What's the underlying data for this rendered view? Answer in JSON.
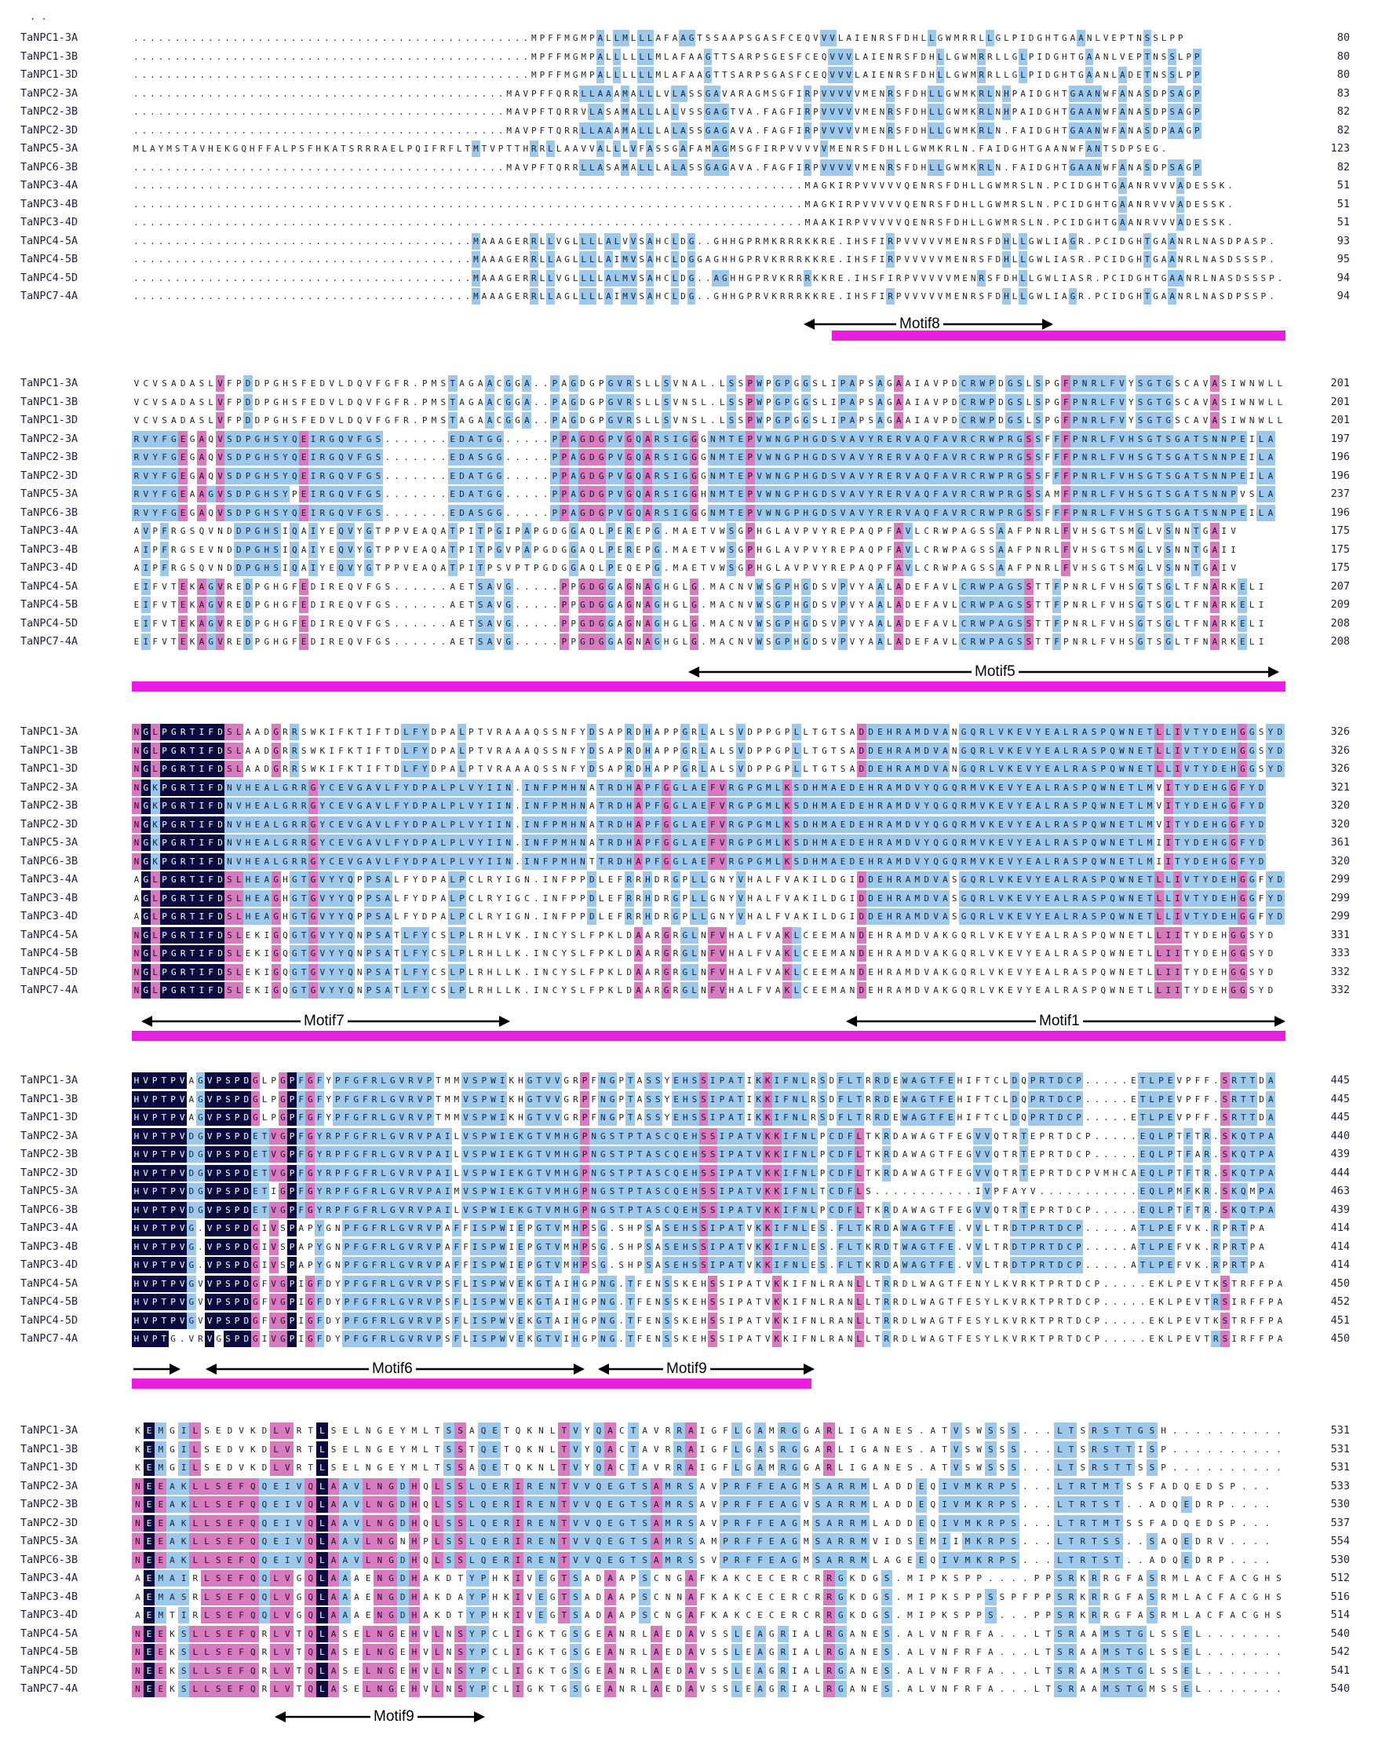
{
  "colors": {
    "identical": "#0b0b3f",
    "similar_pink": "#d77bbf",
    "similar_blue": "#9ec8ea",
    "conserved_bar": "#e81ee0"
  },
  "corner_mark": ". .",
  "sequences": [
    "TaNPC1-3A",
    "TaNPC1-3B",
    "TaNPC1-3D",
    "TaNPC2-3A",
    "TaNPC2-3B",
    "TaNPC2-3D",
    "TaNPC5-3A",
    "TaNPC6-3B",
    "TaNPC3-4A",
    "TaNPC3-4B",
    "TaNPC3-4D",
    "TaNPC4-5A",
    "TaNPC4-5B",
    "TaNPC4-5D",
    "TaNPC7-4A"
  ],
  "blocks": [
    {
      "end_positions": [
        "80",
        "80",
        "80",
        "83",
        "82",
        "82",
        "123",
        "82",
        "51",
        "51",
        "51",
        "93",
        "95",
        "94",
        "94"
      ],
      "rows": [
        "................................................MPFFMGMPALLMLLLAFAAGTSSAAPSGASFCEQVVVLAIENRSFDHLLGWMRRLLGLPIDGHTGAANLVEPTNSSLPP",
        "................................................MPFFMGMPALLLLLLMLAFAAGTTSARPSGESFCEQVVVLAIENRSFDHLLGWMRRLLGLPIDGHTGAANLVEPTNSSLPP",
        "................................................MPFFMGMPALLLLLLMLAFAAGTTSARPSGASFCEQVVVLAIENRSFDHLLGWMRRLLGLPIDGHTGAANLADETNSSLPP",
        ".............................................MAVPFFQRRLLAAAMALLLVLASSGAVARAGMSGFIRPVVVVVMENRSFDHLLGWMKRLNHPAIDGHTGAANWFANASDPSAGP",
        ".............................................MAVPFTQRRVLASAMALLLALVSSGAGTVA.FAGFIRPVVVVVMENRSFDHLLGWMKRLNHPAIDGHTGAANWFANASDPSAGP",
        ".............................................MAVPFTQRRLLAAAMALLLALASSGAGAVA.FAGFIRPVVVVVMENRSFDHLLGWMKRLN.FAIDGHTGAANWFANASDPAAGP",
        "MLAYMSTAVHEKGQHFFALPSFHKATSRRRAELPQIFRFLTMTVPTTHRRLLAAVVALLLVFASSGAFAMAGMSGFIRPVVVVVMENRSFDHLLGWMKRLN.FAIDGHTGAANWFANTSDPSEG.",
        ".............................................MAVPFTQRRLLASAMALLLALASSGAGAVA.FAGFIRPVVVVVMENRSFDHLLGWMKRLN.FAIDGHTGAANWFANASDPSAGP",
        ".................................................................................MAGKIRPVVVVVQENRSFDHLLGWMRSLN.PCIDGHTGAANRVVVADESSK.",
        ".................................................................................MAGKIRPVVVVVQENRSFDHLLGWMRSLN.PCIDGHTGAANRVVVADESSK.",
        ".................................................................................MAAKIRPVVVVVQENRSFDHLLGWMRSLN.PCIDGHTGAANRVVVADESSK.",
        ".........................................MAAAGERRLLVGLLLLALVVSAHCLDG..GHHGPRMKRRRKKRE.IHSFIRPVVVVVMENRSFDHLLGWLIAGR.PCIDGHTGAANRLNASDPASP.",
        ".........................................MAAAGERRLLAGLLLLAIMVSAHCLDGGAGHHGPRVKRRRKKRE.IHSFIRPVVVVVMENRSFDHLLGWLIASR.PCIDGHTGAANRLNASDSSSP.",
        ".........................................MAAAGERRLLVGLLLLALMVSAHCLDG..AGHHGPRVKRRRKKRE.IHSFIRPVVVVVMENRSFDHLLGWLIASR.PCIDGHTGAANRLNASDSSSP.",
        ".........................................MAAAGERRLLAGLLLLAIMVSAHCLDG..GHHGPRVKRRRKKRE.IHSFIRPVVVVVMENRSFDHLLGWLIAGR.PCIDGHTGAANRLNASDPSSP."
      ],
      "motifs": [
        "Motif8"
      ]
    },
    {
      "end_positions": [
        "201",
        "201",
        "201",
        "197",
        "196",
        "196",
        "237",
        "196",
        "175",
        "175",
        "175",
        "207",
        "209",
        "208",
        "208"
      ],
      "rows": [
        "VCVSADASLVFPDDPGHSFEDVLDQVFGFR.PMSTAGAACGGA..PAGDGPGVRSLLSVNAL.LSSPWPGPGGSLIPAPSAGAAIAVPDCRWPDGSLSPGFPNRLFVYSGTGSCAVASIWNWLL",
        "VCVSADASLVFPDDPGHSFEDVLDQVFGFR.PMSTAGAACGGA..PAGDGPGVRSLLSVNSL.LSSPWPGPGGSLIPAPSAGAAIAVPDCRWPDGSLSPGFPNRLFVYSGTGSCAVASIWNWLL",
        "VCVSADASLVFPDDPGHSFEDVLDQVFGFR.PMSTAGAACGGA..PAGDGPGVRSLLSVNSL.LSSPWPGPGGSLIPAPSAGAAIAVPDCRWPDGSLSPGFPNRLFVYSGTGSCAVASIWNWLL",
        "RVYFGEGAQVSDPGHSYQEIRGQVFGS.......EDATGG.....PPAGDGPVGQARSIGGGNMTEPVWNGPHGDSVAVYRERVAQFAVRCRWPRGSSFFFPNRLFVHSGTSGATSNNPEILA",
        "RVYFGEGAQVSDPGHSYQEIRGQVFGS.......EDASGG.....PPAGDGPVGQARSIGGGNMTEPVWNGPHGDSVAVYRERVAQFAVRCRWPRGSSFFFPNRLFVHSGTSGATSNNPEILA",
        "RVYFGEGAQVSDPGHSYQEIRGQVFGS.......EDATGG.....PPAGDGPVGQARSIGGGNMTEPVWNGPHGDSVAVYRERVAQFAVRCRWPRGSSFFFPNRLFVHSGTSGATSNNPEILA",
        "RVYFGEAAGVSDPGHSYPEIRGQVFGS.......EDATGG.....PPAGDGPVGQARSIGGHNMTEPVWNGPHGDSVAVYRERVAQFAVRCRWPRGSSAMFPNRLFVHSGTSGATSNNPVSLA",
        "RVYFGEGAQVSDPGHSYQEIRGQVFGS.......EDASGG.....PPAGDGPVGQARSIGGGNMTEPVWNGPHGDSVAVYRERVAQFAVRCRWPRGSSFFFPNRLFVHSGTSGATSNNPEILA",
        "AVPFRGSQVNDDPGHSIQAIYEQVYGTPPVEAQATPITPGIPAPGDGGAQLPEREPG.MAETVWSGPHGLAVPVYREPAQPFAVLCRWPAGSSAAFPNRLFVHSGTSMGLVSNNTGAIV",
        "AIPFRGSEVNDDPGHSIQAIYEQVYGTPPVEAQATPITPGVPAPGDGGAQLPEREPG.MAETVWSGPHGLAVPVYREPAQPFAVLCRWPAGSSAAFPNRLFVHSGTSMGLVSNNTGAII",
        "AIPFRGSQVNDDPGHSIQAIYEQVYGTPPVEAQATPITPSVPTPGDGGAQLPEQEPG.MAETVWSGPHGLAVPVYREPAQPFAVLCRWPAGSSAAFPNRLFVHSGTSMGLVSNNTGAIV",
        "EIFVTEKAGVREDPGHGFEDIREQVFGS......AETSAVG.....PPGDGGAGNAGHGLG.MACNVWSGPHGDSVPVYAALADEFAVLCRWPAGSSTTFPNRLFVHSGTSGLTFNARKELI",
        "EIFVTEKAGVREDPGHGFEDIREQVFGS......AETSAVG.....PPGDGGAGNAGHGLG.MACNVWSGPHGDSVPVYAALADEFAVLCRWPAGSSTTFPNRLFVHSGTSGLTFNARKELI",
        "EIFVTEKAGVREDPGHGFEDIREQVFGS......AETSAVG.....PPGDGGAGNAGHGLG.MACNVWSGPHGDSVPVYAALADEFAVLCRWPAGSSTTFPNRLFVHSGTSGLTFNARKELI",
        "EIFVTEKAGVREDPGHGFEDIREQVFGS......AETSAVG.....PPGDGGAGNAGHGLG.MACNVWSGPHGDSVPVYAALADEFAVLCRWPAGSSTTFPNRLFVHSGTSGLTFNARKELI"
      ],
      "motifs": [
        "Motif5"
      ]
    },
    {
      "end_positions": [
        "326",
        "326",
        "326",
        "321",
        "320",
        "320",
        "361",
        "320",
        "299",
        "299",
        "299",
        "331",
        "333",
        "332",
        "332"
      ],
      "rows": [
        "NGLPGRTIFDSLAADGRRSWKIFKTIFTDLFYDPALPTVRAAAQSSNFYDSAPRDHAPPGRLALSVDPPGPLLTGTSADDEHRAMDVANGQRLVKEVYEALRASPQWNETLLIVTYDEHGGSYD",
        "NGLPGRTIFDSLAADGRRSWKIFKTIFTDLFYDPALPTVRAAAQSSNFYDSAPRDHAPPGRLALSVDPPGPLLTGTSADDEHRAMDVANGQRLVKEVYEALRASPQWNETLLIVTYDEHGGSYD",
        "NGLPGRTIFDSLAADGRRSWKIFKTIFTDLFYDPALPTVRAAAQSSNFYDSAPRDHAPPGRLALSVDPPGPLLTGTSADDEHRAMDVANGQRLVKEVYEALRASPQWNETLLIVTYDEHGGSYD",
        "NGKPGRTIFDNVHEALGRRGYCEVGAVLFYDPALPLVYIIN.INFPMHNATRDHAPFGGLAEFVRGPGMLKSDHMAEDEHRAMDVYQGQRMVKEVYEALRASPQWNETLMVITYDEHGGFYD",
        "NGKPGRTIFDNVHEALGRRGYCEVGAVLFYDPALPLVYIIN.INFPMHNATRDHAPFGGLAEFVRGPGMLKSDHMAEDEHRAMDVYQGQRMVKEVYEALRASPQWNETLMVITYDEHGGFYD",
        "NGKPGRTIFDNVHEALGRRGYCEVGAVLFYDPALPLVYIIN.INFPMHNATRDHAPFGGLAEFVRGPGMLKSDHMAEDEHRAMDVYQGQRMVKEVYEALRASPQWNETLMVITYDEHGGFYD",
        "NGKPGRTIFDNVHEALGRRGYCEVGAVLFYDPALPLVYIIN.INFPMHNATRDHAPFGGLAEFVRGPGMLKSDHMAEDEHRAMDVYQGQRMVKEVYEALRASPQWNETLMIITYDEHGGFYD",
        "NGKPGRTIFDNVHEALGRRGYCEVGAVLFYDPALPLVYIIN.INFPMHNTTRDHAPFGGLAEFVRGPGMLKSDHMAEDEHRAMDVYQGQRMVKEVYEALRASPQWNETLMIITYDEHGGFYD",
        "AGLPGRTIFDSLHEAGHGTGVYYQPPSALFYDPALPCLRYIGN.INFPPDLEFRRHDRGPLLGNYVHALFVAKILDGIDDEHRAMDVASGQRLVKEVYEALRASPQWNETLLIVTYDEHGGFYD",
        "AGLPGRTIFDSLHEAGHGTGVYYQPPSALFYDPALPCLRYIGC.INFPPDLEFRRHDRGPLLGNYVHALFVAKILDGIDDEHRAMDVASGQRLVKEVYEALRASPQWNETLLIVTYDEHGGFYD",
        "AGLPGRTIFDSLHEAGHGTGVYYQPPSALFYDPALPCLRYIGN.INFPPDLEFRRHDRGPLLGNYVHALFVAKILDGIDDEHRAMDVASGQRLVKEVYEALRASPQWNETLLIVTYDEHGGFYD",
        "NGLPGRTIFDSLEKIGQGTGVYYQNPSATLFYCSLPLRHLVK.INCYSLFPKLDAARGRGLNFVHALFVAKLCEEMANDEHRAMDVAKGQRLVKEVYEALRASPQWNETLLIITYDEHGGSYD",
        "NGLPGRTIFDSLEKIGQGTGVYYQNPSATLFYCSLPLRHLLK.INCYSLFPKLDAARGRGLNFVHALFVAKLCEEMANDEHRAMDVAKGQRLVKEVYEALRASPQWNETLLIITYDEHGGSYD",
        "NGLPGRTIFDSLEKIGQGTGVYYQNPSATLFYCSLPLRHLLK.INCYSLFPKLDAARGRGLNFVHALFVAKLCEEMANDEHRAMDVAKGQRLVKEVYEALRASPQWNETLLIITYDEHGGSYD",
        "NGLPGRTIFDSLEKIGQGTGVYYQNPSATLFYCSLPLRHLLK.INCYSLFPKLDAARGRGLNFVHALFVAKLCEEMANDEHRAMDVAKGQRLVKEVYEALRASPQWNETLLIITYDEHGGSYD"
      ],
      "motifs": [
        "Motif7",
        "Motif1"
      ]
    },
    {
      "end_positions": [
        "445",
        "445",
        "445",
        "440",
        "439",
        "444",
        "463",
        "439",
        "414",
        "414",
        "414",
        "450",
        "452",
        "451",
        "450"
      ],
      "rows": [
        "HVPTPVAGVPSPDGLPGPFGFYPFGFRLGVRVPTMMVSPWIKHGTVVGRPFNGPTASSYEHSSIPATIKKIFNLRSDFLTRRDEWAGTFEHIFTCLDQPRTDCP.....ETLPEVPFF.SRTTDA",
        "HVPTPVAGVPSPDGLPGPFGFYPFGFRLGVRVPTMMVSPWIKHGTVVGRPFNGPTASSYEHSSIPATIKKIFNLRSDFLTRRDEWAGTFEHIFTCLDQPRTDCP.....ETLPEVPFF.SRTTDA",
        "HVPTPVAGVPSPDGLPGPFGFYPFGFRLGVRVPTMMVSPWIKHGTVVGRPFNGPTASSYEHSSIPATIKKIFNLRSDFLTRRDEWAGTFEHIFTCLDQPRTDCP.....ETLPEVPFF.SRTTDA",
        "HVPTPVDGVPSPDETVGPFGYRPFGFRLGVRVPAILVSPWIEKGTVMHGPNGSTPTASCQEHSSIPATVKKIFNLPCDFLTKRDAWAGTFEGVVQTRTEPRTDCP.....EQLPTFTR.SKQTPA",
        "HVPTPVDGVPSPDETVGPFGYRPFGFRLGVRVPAILVSPWIEKGTVMHGPNGSTPTASCQEHSSIPATVKKIFNLPCDFLTKRDAWAGTFEGVVQTRTEPRTDCP.....EQLPTFAR.SKQTPA",
        "HVPTPVDGVPSPDETVGPFGYRPFGFRLGVRVPAILVSPWIEKGTVMHGPNGSTPTASCQEHSSIPATVKKIFNLPCDFLTKRDAWAGTFEGVVQTRTEPRTDCPVMHCAEQLPTFTR.SKQTPA",
        "HVPTPVDGVPSPDETIGPFGYRPFGFRLGVRVPAIMVSPWIEKGTVMHGPNGSTPTASCQEHSSIPATVKKIFNLTCDFLS...........IVPFAYV...........EQLPMFKR.SKQMPA",
        "HVPTPVDGVPSPDETVGPFGYRPFGFRLGVRVPAILVSPWIEKGTVMHGPNGSTPTASCQEHSSIPATVKKIFNLPCDFLTKRDAWAGTFEGVVQTRTEPRTDCP.....EQLPTFTR.SKQTPA",
        "HVPTPVG.VPSPDGIVSPAPYGNPFGFRLGVRVPAFFISPWIEPGTVMHPSG.SHPSASEHSSIPATVKKIFNLES.FLTKRDAWAGTFE.VVLTRDTPRTDCP.....ATLPEFVK.RPRTPA",
        "HVPTPVG.VPSPDGIVSPAPYGNPFGFRLGVRVPAFFISPWIEPGTVMHPSG.SHPSASEHSSIPATVKKIFNLES.FLTKRDTWAGTFE.VVLTRDTPRTDCP.....ATLPEFVK.RPRTPA",
        "HVPTPVG.VPSPDGIVSPAPYGNPFGFRLGVRVPAFFISPWIEPGTVMHPSG.SHPSASEHSSIPATVKKIFNLES.FLTKRDAWAGTFE.VVLTRDTPRTDCP.....ATLPEFVK.RPRTPA",
        "HVPTPVGVVPSPDGFVGPIGFDYPFGFRLGVRVPSFLISPWVEKGTAIHGPNG.TFENSSKEHSSIPATVKKIFNLRANLLTRRDLWAGTFENYLKVRKTPRTDCP.....EKLPEVTKSTRFFPA",
        "HVPTPVGVVPSPDGFVGPIGFDYPFGFRLGVRVPSFLISPWVEKGTAIHGPNG.TFENSSKEHSSIPATVKKIFNLRANLLTRRDLWAGTFESYLKVRKTPRTDCP.....EKLPEVTRSIRFFPA",
        "HVPTPVGVVPSPDGFVGPIGFDYPFGFRLGVRVPSFLISPWVEKGTAIHGPNG.TFENSSKEHSSIPATVKKIFNLRANLLTRRDLWAGTFESYLKVRKTPRTDCP.....EKLPEVTKSTRFFPA",
        "HVPTG.VRVGSPDGIVGPIGFDYPFGFRLGVRVPSFLISPWVEKGTVIHGPNG.TFENSSKEHSSIPATVKKIFNLRANLLTRRDLWAGTFESYLKVRKTPRTDCP.....EKLPEVTRSIRFFPA"
      ],
      "motifs": [
        "Motif6",
        "Motif9"
      ]
    },
    {
      "end_positions": [
        "531",
        "531",
        "531",
        "533",
        "530",
        "537",
        "554",
        "530",
        "512",
        "516",
        "514",
        "540",
        "542",
        "541",
        "540"
      ],
      "rows": [
        "KEMGILSEDVKDLVRTLSELNGEYMLTSSAQETQKNLTVYQACTAVRRAIGFLGAMRGGARLIGANES.ATVSWSSS...LTSRSTTGSH..........",
        "KEMGILSEDVKDLVRTLSELNGEYMLTSSTQETQKNLTVYQACTAVRRAIGFLGASRGGARLIGANES.ATVSWSSS...LTSRSTTISP..........",
        "KEMGILSEDVKDLVRTLSELNGEYMLTSSAQETQKNLTVYQACTAVRRAIGFLGAMRGGARLIGANES.ATVSWSSS...LTSRSTTSSP..........",
        "NEEAKLLSEFQQEIVQLAAVLNGDHQLSSLQERIRENTVVQEGTSAMRSAVPRFFEAGMSARRMLADDEQIVMKRPS...LTRTMTSSFADQEDSP...",
        "NEEAKLLSEFQQEIVQLAAVLNGDHQLSSLQERIRENTVVQEGTSAMRSAVPRFFEAGVSARRMLADDEQIVMKRPS...LTRTST..ADQEDRP....",
        "NEEAKLLSEFQQEIVQLAAVLNGDHQLSSLQERIRENTVVQEGTSAMRSAVPRFFEAGMSARRMLADDEQIVMKRPS...LTRTMTSSFADQEDSP...",
        "NEEAKLLSEFQQEIVQLAAVLNGNHPLSSLQERIRENTVVQEGTSAMRSAMPRFFEAGMSARRMVIDSEMIIMKRPS...LTRTSS..SAQEDRV....",
        "NEEAKLLSEFQQEIVQLAAVLNGDHQLSSLQERIRENTVVQEGTSAMRSSVPRFFEAGMSARRMLAGEEQIVMKRPS...LTRTST..ADQEDRP....",
        "AEMAIRLSEFQQLVGQLAAAENGDHAKDTYPHKIVEGTSADAAPSCNGAFKAKCECERCRRGKDGS.MIPKSPP....PPSRKRRGFASRMLACFACGHS",
        "AEMASRLSEFQQLVGQLAAAENGDHAKDAYPHKIVEGTSADAAPSCNNAFKAKCECERCRRGKDGS.MIPKSPPSSPFPPSRKRRGFASRMLACFACGHS",
        "AEMTIRLSEFQQLVGQLAAAENGDHAKDTYPHKIVEGTSADAAPSCNGAFKAKCECERCRRGKDGS.MIPKSPPS...PPSRKRRGFASRMLACFACGHS",
        "NEEKSLLSEFQRLVTQLASELNGEHVLNSYPCLIGKTGSGEANRLAEDAVSSLEAGRIALRGANES.ALVNFRFA...LTSRAAMSTGLSSEL.......",
        "NEEKSLLSEFQRLVTQLASELNGEHVLNSYPCLIGKTGSGEANRLAEDAVSSLEAGRIALRGANES.ALVNFRFA...LTSRAAMSTGLSSEL.......",
        "NEEKSLLSEFQRLVTQLASELNGEHVLNSYPCLIGKTGSGEANRLAEDAVSSLEAGRIALRGANES.ALVNFRFA...LTSRAAMSTGLSSEL.......",
        "NEEKSLLSEFQRLVTQLASELNGEHVLNSYPCLIGKTGSGEANRLAEDAVSSLEAGRIALRGANES.ALVNFRFA...LTSRAAMSTGMSSEL......."
      ],
      "motifs": [
        "Motif9"
      ]
    }
  ]
}
